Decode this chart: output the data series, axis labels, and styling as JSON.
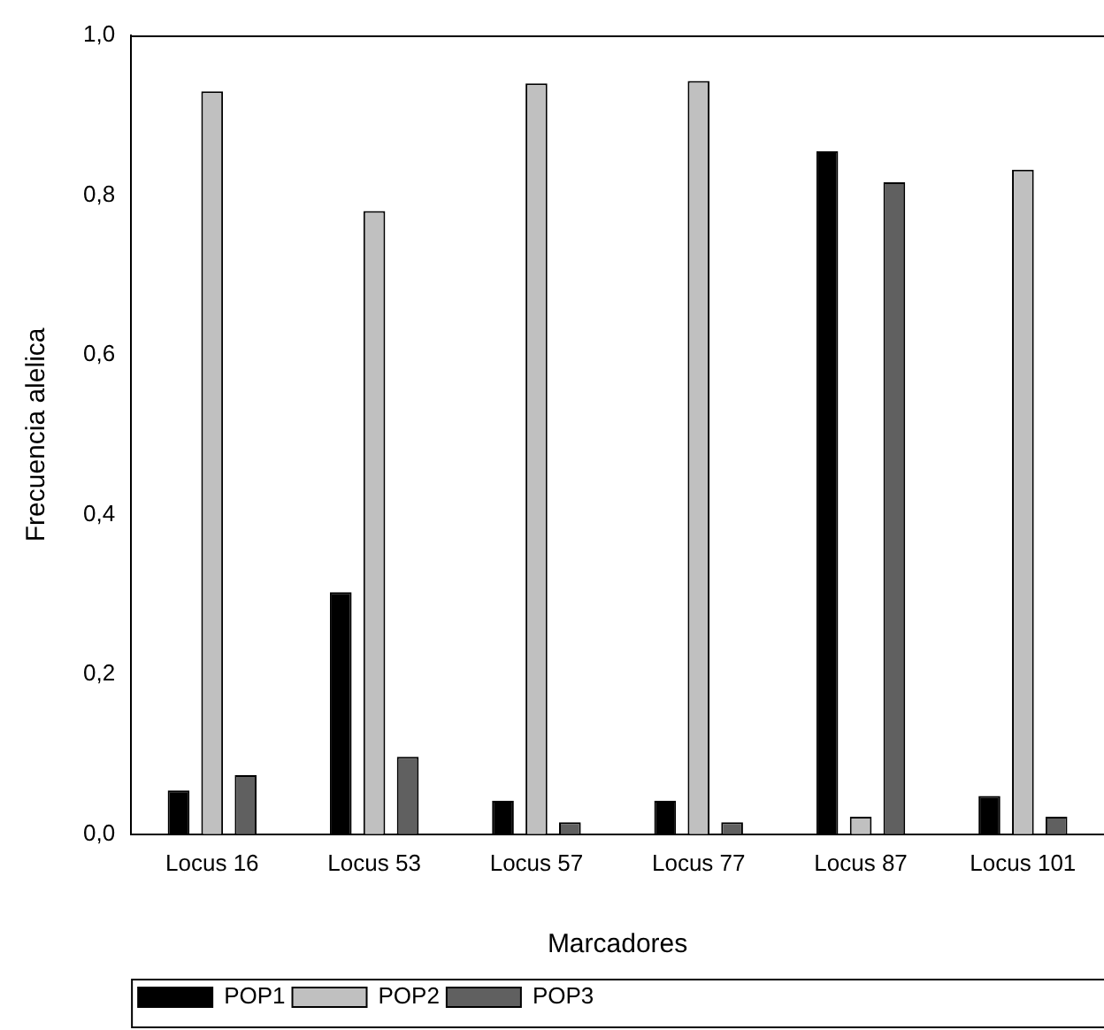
{
  "chart_data": {
    "type": "bar",
    "xlabel": "Marcadores",
    "ylabel": "Frecuencia alelica",
    "categories": [
      "Locus 16",
      "Locus 53",
      "Locus 57",
      "Locus 77",
      "Locus 87",
      "Locus 101"
    ],
    "series": [
      {
        "name": "POP1",
        "color": "#000000",
        "values": [
          0.055,
          0.303,
          0.042,
          0.042,
          0.855,
          0.048
        ]
      },
      {
        "name": "POP2",
        "color": "#c0c0c0",
        "values": [
          0.93,
          0.78,
          0.94,
          0.943,
          0.022,
          0.832
        ]
      },
      {
        "name": "POP3",
        "color": "#606060",
        "values": [
          0.074,
          0.097,
          0.015,
          0.015,
          0.816,
          0.022
        ]
      }
    ],
    "ylim": [
      0,
      1
    ],
    "yticks": [
      {
        "value": 0,
        "label": "0,0"
      },
      {
        "value": 0.2,
        "label": "0,2"
      },
      {
        "value": 0.4,
        "label": "0,4"
      },
      {
        "value": 0.6,
        "label": "0,6"
      },
      {
        "value": 0.8,
        "label": "0,8"
      },
      {
        "value": 1,
        "label": "1,0"
      }
    ],
    "grid": false,
    "legend": "bottom left"
  }
}
